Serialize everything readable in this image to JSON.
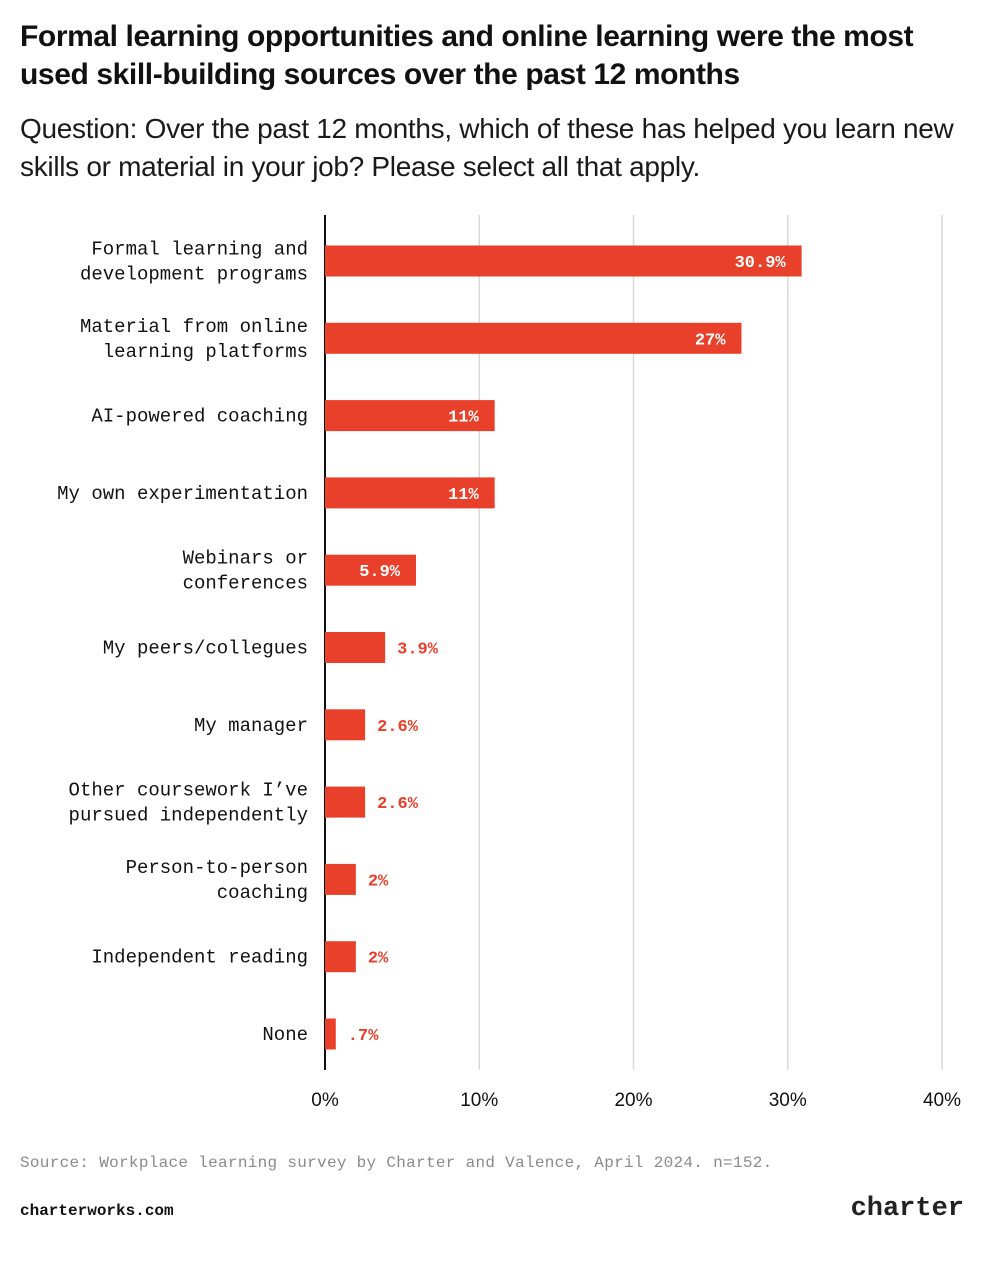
{
  "header": {
    "title": "Formal learning opportunities and online learning were the most used skill-building sources over the past 12 months",
    "subtitle": "Question: Over the past 12 months, which of these has helped you learn new skills or material in your job? Please select all that apply."
  },
  "chart_data": {
    "type": "bar",
    "orientation": "horizontal",
    "categories": [
      "Formal learning and development programs",
      "Material from online learning platforms",
      "AI-powered coaching",
      "My own experimentation",
      "Webinars or conferences",
      "My peers/collegues",
      "My manager",
      "Other coursework I've pursued independently",
      "Person-to-person coaching",
      "Independent reading",
      "None"
    ],
    "category_lines": [
      [
        "Formal learning and",
        "development programs"
      ],
      [
        "Material from online",
        "learning platforms"
      ],
      [
        "AI-powered coaching"
      ],
      [
        "My own experimentation"
      ],
      [
        "Webinars or",
        "conferences"
      ],
      [
        "My peers/collegues"
      ],
      [
        "My manager"
      ],
      [
        "Other coursework I’ve",
        "pursued independently"
      ],
      [
        "Person-to-person",
        "coaching"
      ],
      [
        "Independent reading"
      ],
      [
        "None"
      ]
    ],
    "values": [
      30.9,
      27,
      11,
      11,
      5.9,
      3.9,
      2.6,
      2.6,
      2,
      2,
      0.7
    ],
    "data_labels": [
      "30.9%",
      "27%",
      "11%",
      "11%",
      "5.9%",
      "3.9%",
      "2.6%",
      "2.6%",
      "2%",
      "2%",
      ".7%"
    ],
    "xlim": [
      0,
      40
    ],
    "x_ticks": [
      0,
      10,
      20,
      30,
      40
    ],
    "x_tick_labels": [
      "0%",
      "10%",
      "20%",
      "30%",
      "40%"
    ],
    "grid": true,
    "bar_color": "#e8402a",
    "grid_color": "#d9d9d9"
  },
  "footer": {
    "source": "Source: Workplace learning survey by Charter and Valence, April 2024. n=152.",
    "site": "charterworks.com",
    "brand": "charter"
  }
}
